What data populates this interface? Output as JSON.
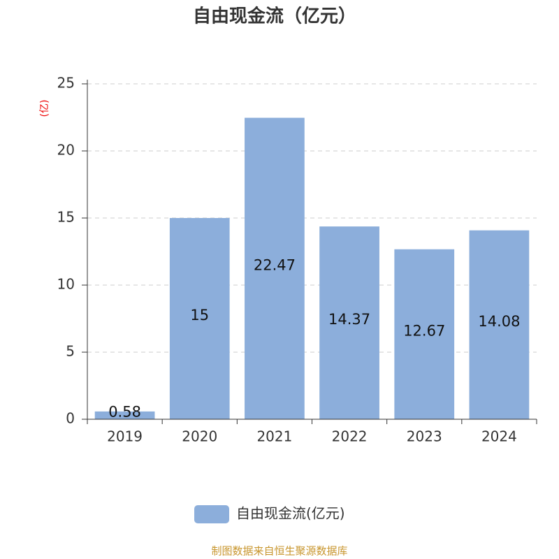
{
  "chart_data": {
    "type": "bar",
    "title": "自由现金流（亿元）",
    "y_label": "(亿)",
    "categories": [
      "2019",
      "2020",
      "2021",
      "2022",
      "2023",
      "2024"
    ],
    "series": [
      {
        "name": "自由现金流(亿元)",
        "color": "#8caedb",
        "values": [
          0.58,
          15,
          22.47,
          14.37,
          12.67,
          14.08
        ]
      }
    ],
    "ylim": [
      0,
      25
    ],
    "yticks": [
      0,
      5,
      10,
      15,
      20,
      25
    ],
    "grid": true,
    "source": "制图数据来自恒生聚源数据库"
  }
}
